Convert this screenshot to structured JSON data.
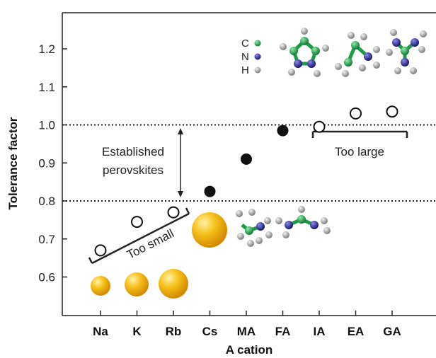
{
  "chart_data": {
    "type": "scatter",
    "title": "",
    "xlabel": "A cation",
    "ylabel": "Tolerance factor",
    "categories": [
      "Na",
      "K",
      "Rb",
      "Cs",
      "MA",
      "FA",
      "IA",
      "EA",
      "GA"
    ],
    "ylim": [
      0.5,
      1.3
    ],
    "yticks": [
      0.6,
      0.7,
      0.8,
      0.9,
      1.0,
      1.1,
      1.2
    ],
    "ytick_labels": [
      "0.6",
      "0.7",
      "0.8",
      "0.9",
      "1.0",
      "1.1",
      "1.2"
    ],
    "reference_lines": [
      0.8,
      1.0
    ],
    "points": [
      {
        "cation": "Na",
        "value": 0.67,
        "fill": "open"
      },
      {
        "cation": "K",
        "value": 0.745,
        "fill": "open"
      },
      {
        "cation": "Rb",
        "value": 0.77,
        "fill": "open"
      },
      {
        "cation": "Cs",
        "value": 0.825,
        "fill": "filled"
      },
      {
        "cation": "MA",
        "value": 0.91,
        "fill": "filled"
      },
      {
        "cation": "FA",
        "value": 0.985,
        "fill": "filled"
      },
      {
        "cation": "IA",
        "value": 0.995,
        "fill": "open"
      },
      {
        "cation": "EA",
        "value": 1.03,
        "fill": "open"
      },
      {
        "cation": "GA",
        "value": 1.035,
        "fill": "open"
      }
    ],
    "annotations": {
      "established_line1": "Established",
      "established_line2": "perovskites",
      "too_small": "Too small",
      "too_large": "Too large"
    },
    "atom_legend": [
      {
        "symbol": "C",
        "color": "#1e9a46"
      },
      {
        "symbol": "N",
        "color": "#23238f"
      },
      {
        "symbol": "H",
        "color": "#a6a6a6"
      }
    ],
    "colors": {
      "sphere": "#f2b10d",
      "marker_filled": "#111111",
      "marker_open_stroke": "#111111"
    }
  }
}
